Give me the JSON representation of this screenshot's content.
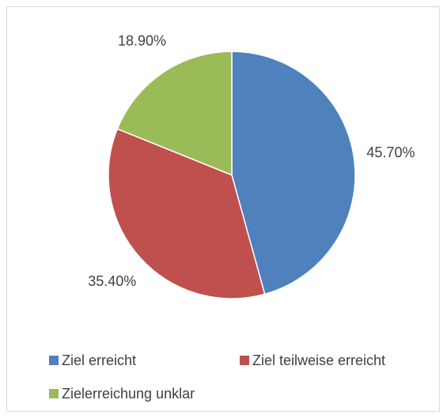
{
  "chart_data": {
    "type": "pie",
    "categories": [
      "Ziel erreicht",
      "Ziel teilweise erreicht",
      "Zielerreichung unklar"
    ],
    "values": [
      45.7,
      35.4,
      18.9
    ],
    "value_labels": [
      "45.70%",
      "35.40%",
      "18.90%"
    ],
    "colors": [
      "#4f81bd",
      "#c0504d",
      "#9bbb59"
    ],
    "legend": "bottom"
  }
}
